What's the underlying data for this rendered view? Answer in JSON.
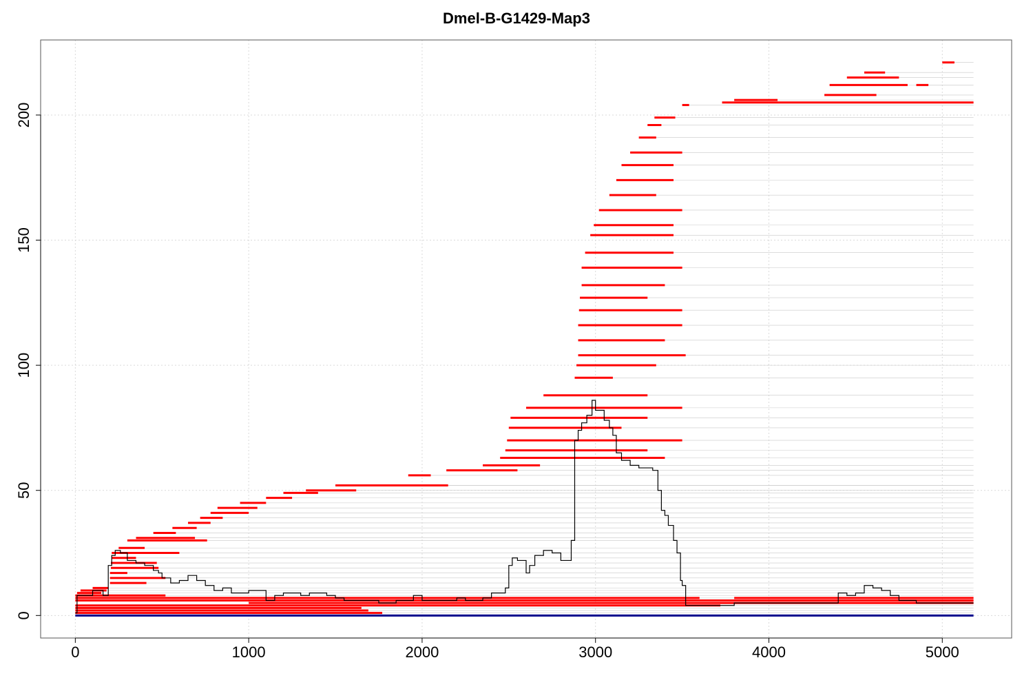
{
  "chart_data": {
    "type": "line",
    "title": "Dmel-B-G1429-Map3",
    "xlabel": "",
    "ylabel": "",
    "xlim": [
      -200,
      5400
    ],
    "ylim": [
      -9,
      230
    ],
    "x_ticks": [
      0,
      1000,
      2000,
      3000,
      4000,
      5000
    ],
    "y_ticks": [
      0,
      50,
      100,
      150,
      200
    ],
    "grid": true,
    "colors": {
      "reads": "#ff0000",
      "coverage": "#000000",
      "baseline": "#00008b",
      "connector": "#c8c8c8",
      "grid": "#d9d9d9"
    },
    "reference_length": 5180,
    "read_alignments": [
      {
        "start": 0,
        "end": 1770,
        "y": 1
      },
      {
        "start": 0,
        "end": 1690,
        "y": 2
      },
      {
        "start": 0,
        "end": 1650,
        "y": 3
      },
      {
        "start": 0,
        "end": 3720,
        "y": 4
      },
      {
        "start": 1000,
        "end": 5180,
        "y": 5
      },
      {
        "start": 0,
        "end": 5180,
        "y": 6
      },
      {
        "start": 0,
        "end": 3600,
        "y": 7
      },
      {
        "start": 3800,
        "end": 5180,
        "y": 7
      },
      {
        "start": 0,
        "end": 520,
        "y": 8
      },
      {
        "start": 10,
        "end": 150,
        "y": 9
      },
      {
        "start": 30,
        "end": 180,
        "y": 10
      },
      {
        "start": 100,
        "end": 190,
        "y": 11
      },
      {
        "start": 200,
        "end": 410,
        "y": 13
      },
      {
        "start": 200,
        "end": 520,
        "y": 15
      },
      {
        "start": 200,
        "end": 300,
        "y": 17
      },
      {
        "start": 205,
        "end": 480,
        "y": 19
      },
      {
        "start": 205,
        "end": 470,
        "y": 21
      },
      {
        "start": 210,
        "end": 350,
        "y": 23
      },
      {
        "start": 210,
        "end": 600,
        "y": 25
      },
      {
        "start": 250,
        "end": 400,
        "y": 27
      },
      {
        "start": 300,
        "end": 760,
        "y": 30
      },
      {
        "start": 350,
        "end": 690,
        "y": 31
      },
      {
        "start": 450,
        "end": 580,
        "y": 33
      },
      {
        "start": 560,
        "end": 700,
        "y": 35
      },
      {
        "start": 650,
        "end": 780,
        "y": 37
      },
      {
        "start": 720,
        "end": 850,
        "y": 39
      },
      {
        "start": 780,
        "end": 1000,
        "y": 41
      },
      {
        "start": 820,
        "end": 1050,
        "y": 43
      },
      {
        "start": 950,
        "end": 1100,
        "y": 45
      },
      {
        "start": 1100,
        "end": 1250,
        "y": 47
      },
      {
        "start": 1200,
        "end": 1400,
        "y": 49
      },
      {
        "start": 1330,
        "end": 1620,
        "y": 50
      },
      {
        "start": 1500,
        "end": 1800,
        "y": 52
      },
      {
        "start": 1700,
        "end": 2150,
        "y": 52
      },
      {
        "start": 1920,
        "end": 2050,
        "y": 56
      },
      {
        "start": 2140,
        "end": 2550,
        "y": 58
      },
      {
        "start": 2350,
        "end": 2680,
        "y": 60
      },
      {
        "start": 2450,
        "end": 3400,
        "y": 63
      },
      {
        "start": 2480,
        "end": 3300,
        "y": 66
      },
      {
        "start": 2490,
        "end": 3500,
        "y": 70
      },
      {
        "start": 2500,
        "end": 3150,
        "y": 75
      },
      {
        "start": 2510,
        "end": 3300,
        "y": 79
      },
      {
        "start": 2600,
        "end": 3500,
        "y": 83
      },
      {
        "start": 2700,
        "end": 3300,
        "y": 88
      },
      {
        "start": 2880,
        "end": 3100,
        "y": 95
      },
      {
        "start": 2890,
        "end": 3350,
        "y": 100
      },
      {
        "start": 2900,
        "end": 3520,
        "y": 104
      },
      {
        "start": 2900,
        "end": 3400,
        "y": 110
      },
      {
        "start": 2900,
        "end": 3500,
        "y": 116
      },
      {
        "start": 2905,
        "end": 3500,
        "y": 122
      },
      {
        "start": 2910,
        "end": 3300,
        "y": 127
      },
      {
        "start": 2920,
        "end": 3400,
        "y": 132
      },
      {
        "start": 2920,
        "end": 3500,
        "y": 139
      },
      {
        "start": 2940,
        "end": 3450,
        "y": 145
      },
      {
        "start": 2970,
        "end": 3450,
        "y": 152
      },
      {
        "start": 2990,
        "end": 3450,
        "y": 156
      },
      {
        "start": 3020,
        "end": 3500,
        "y": 162
      },
      {
        "start": 3080,
        "end": 3350,
        "y": 168
      },
      {
        "start": 3120,
        "end": 3450,
        "y": 174
      },
      {
        "start": 3150,
        "end": 3450,
        "y": 180
      },
      {
        "start": 3200,
        "end": 3500,
        "y": 185
      },
      {
        "start": 3250,
        "end": 3350,
        "y": 191
      },
      {
        "start": 3300,
        "end": 3380,
        "y": 196
      },
      {
        "start": 3340,
        "end": 3460,
        "y": 199
      },
      {
        "start": 3500,
        "end": 3540,
        "y": 204
      },
      {
        "start": 3730,
        "end": 5180,
        "y": 205
      },
      {
        "start": 3800,
        "end": 4050,
        "y": 206
      },
      {
        "start": 4320,
        "end": 4620,
        "y": 208
      },
      {
        "start": 4350,
        "end": 4800,
        "y": 212
      },
      {
        "start": 4450,
        "end": 4750,
        "y": 215
      },
      {
        "start": 4550,
        "end": 4670,
        "y": 217
      },
      {
        "start": 4850,
        "end": 4920,
        "y": 212
      },
      {
        "start": 5000,
        "end": 5070,
        "y": 221
      }
    ],
    "coverage": {
      "x": [
        0,
        10,
        100,
        160,
        190,
        210,
        230,
        260,
        300,
        350,
        400,
        450,
        480,
        500,
        550,
        600,
        650,
        700,
        750,
        800,
        850,
        900,
        950,
        1000,
        1050,
        1100,
        1150,
        1200,
        1250,
        1300,
        1350,
        1400,
        1450,
        1500,
        1550,
        1600,
        1650,
        1700,
        1750,
        1800,
        1850,
        1900,
        1950,
        2000,
        2050,
        2100,
        2150,
        2200,
        2250,
        2300,
        2350,
        2400,
        2450,
        2480,
        2500,
        2520,
        2550,
        2600,
        2620,
        2650,
        2700,
        2750,
        2800,
        2850,
        2860,
        2880,
        2900,
        2920,
        2950,
        2980,
        3000,
        3050,
        3080,
        3100,
        3120,
        3150,
        3200,
        3250,
        3300,
        3330,
        3360,
        3380,
        3400,
        3420,
        3450,
        3470,
        3490,
        3500,
        3520,
        3600,
        3700,
        3730,
        3800,
        4000,
        4300,
        4400,
        4450,
        4500,
        4550,
        4600,
        4650,
        4700,
        4750,
        4800,
        4850,
        4900,
        5000,
        5100,
        5180
      ],
      "y": [
        1,
        8,
        10,
        8,
        20,
        24,
        26,
        25,
        22,
        21,
        20,
        18,
        17,
        15,
        13,
        14,
        16,
        14,
        12,
        10,
        11,
        9,
        9,
        10,
        10,
        6,
        8,
        9,
        9,
        8,
        9,
        9,
        8,
        7,
        6,
        6,
        6,
        6,
        5,
        5,
        6,
        6,
        8,
        6,
        6,
        6,
        6,
        7,
        6,
        6,
        7,
        9,
        9,
        11,
        20,
        23,
        22,
        17,
        20,
        24,
        26,
        25,
        22,
        22,
        30,
        70,
        74,
        77,
        80,
        86,
        82,
        78,
        75,
        72,
        65,
        62,
        60,
        59,
        59,
        58,
        50,
        42,
        40,
        36,
        30,
        25,
        14,
        12,
        4,
        4,
        4,
        4,
        5,
        5,
        5,
        9,
        8,
        9,
        12,
        11,
        10,
        8,
        6,
        6,
        5,
        5,
        5,
        5,
        5
      ]
    }
  }
}
